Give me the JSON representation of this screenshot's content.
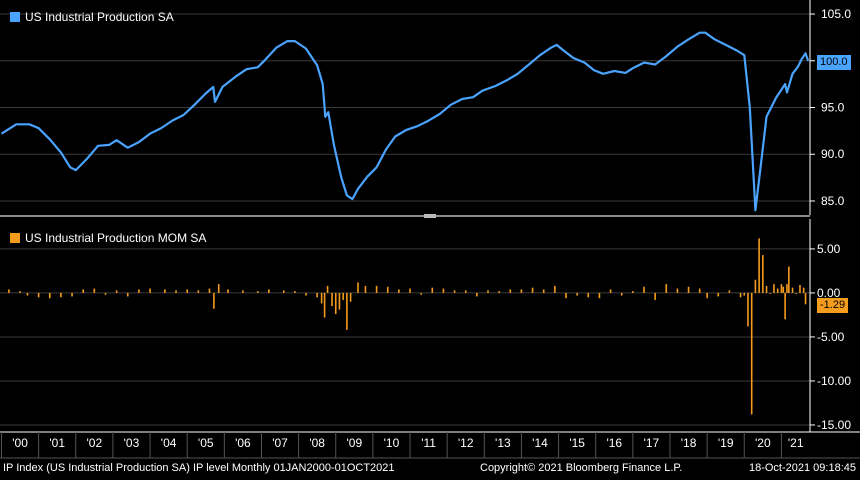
{
  "chart_data": [
    {
      "type": "line",
      "legend": "US Industrial Production SA",
      "color": "#4aa3ff",
      "last_value_label": "100.0",
      "ylim": [
        83.5,
        106.5
      ],
      "yticks": [
        85.0,
        90.0,
        95.0,
        100.0,
        105.0
      ],
      "ytick_labels": [
        "85.0",
        "90.0",
        "95.0",
        "100.0",
        "105.0"
      ],
      "x_unit": "date (fractional year)",
      "xlim": [
        1999.96,
        2021.77
      ],
      "points": [
        [
          2000.0,
          92.2
        ],
        [
          2000.4,
          93.2
        ],
        [
          2000.75,
          93.2
        ],
        [
          2001.0,
          92.8
        ],
        [
          2001.3,
          91.6
        ],
        [
          2001.6,
          90.2
        ],
        [
          2001.85,
          88.6
        ],
        [
          2002.0,
          88.3
        ],
        [
          2002.3,
          89.5
        ],
        [
          2002.6,
          90.9
        ],
        [
          2002.9,
          91.0
        ],
        [
          2003.1,
          91.5
        ],
        [
          2003.4,
          90.7
        ],
        [
          2003.7,
          91.3
        ],
        [
          2004.0,
          92.2
        ],
        [
          2004.3,
          92.8
        ],
        [
          2004.6,
          93.6
        ],
        [
          2004.9,
          94.2
        ],
        [
          2005.2,
          95.3
        ],
        [
          2005.5,
          96.5
        ],
        [
          2005.7,
          97.2
        ],
        [
          2005.75,
          95.6
        ],
        [
          2005.95,
          97.2
        ],
        [
          2006.3,
          98.3
        ],
        [
          2006.6,
          99.1
        ],
        [
          2006.9,
          99.3
        ],
        [
          2007.1,
          100.1
        ],
        [
          2007.4,
          101.4
        ],
        [
          2007.7,
          102.1
        ],
        [
          2007.9,
          102.1
        ],
        [
          2008.2,
          101.3
        ],
        [
          2008.5,
          99.5
        ],
        [
          2008.65,
          97.5
        ],
        [
          2008.72,
          94.0
        ],
        [
          2008.8,
          94.5
        ],
        [
          2008.95,
          91.0
        ],
        [
          2009.15,
          87.5
        ],
        [
          2009.3,
          85.6
        ],
        [
          2009.45,
          85.2
        ],
        [
          2009.6,
          86.3
        ],
        [
          2009.85,
          87.6
        ],
        [
          2010.1,
          88.6
        ],
        [
          2010.35,
          90.5
        ],
        [
          2010.6,
          91.9
        ],
        [
          2010.9,
          92.6
        ],
        [
          2011.2,
          93.0
        ],
        [
          2011.5,
          93.6
        ],
        [
          2011.8,
          94.3
        ],
        [
          2012.1,
          95.3
        ],
        [
          2012.4,
          95.9
        ],
        [
          2012.7,
          96.1
        ],
        [
          2012.95,
          96.8
        ],
        [
          2013.3,
          97.3
        ],
        [
          2013.6,
          97.9
        ],
        [
          2013.9,
          98.6
        ],
        [
          2014.2,
          99.6
        ],
        [
          2014.5,
          100.6
        ],
        [
          2014.8,
          101.4
        ],
        [
          2014.95,
          101.7
        ],
        [
          2015.1,
          101.2
        ],
        [
          2015.4,
          100.3
        ],
        [
          2015.7,
          99.8
        ],
        [
          2015.95,
          99.0
        ],
        [
          2016.2,
          98.6
        ],
        [
          2016.5,
          98.9
        ],
        [
          2016.8,
          98.7
        ],
        [
          2017.0,
          99.2
        ],
        [
          2017.3,
          99.8
        ],
        [
          2017.6,
          99.6
        ],
        [
          2017.9,
          100.5
        ],
        [
          2018.2,
          101.5
        ],
        [
          2018.5,
          102.3
        ],
        [
          2018.8,
          103.0
        ],
        [
          2018.95,
          103.0
        ],
        [
          2019.2,
          102.3
        ],
        [
          2019.5,
          101.7
        ],
        [
          2019.8,
          101.1
        ],
        [
          2020.0,
          100.6
        ],
        [
          2020.15,
          95.0
        ],
        [
          2020.3,
          84.0
        ],
        [
          2020.45,
          89.0
        ],
        [
          2020.6,
          94.0
        ],
        [
          2020.85,
          96.0
        ],
        [
          2021.1,
          97.5
        ],
        [
          2021.15,
          96.6
        ],
        [
          2021.3,
          98.6
        ],
        [
          2021.45,
          99.4
        ],
        [
          2021.55,
          100.2
        ],
        [
          2021.65,
          100.8
        ],
        [
          2021.72,
          100.0
        ]
      ]
    },
    {
      "type": "bar",
      "legend": "US Industrial Production MOM SA",
      "color": "#f39c1d",
      "last_value_label": "-1.29",
      "ylim": [
        -15.8,
        8.4
      ],
      "yticks": [
        5.0,
        0.0,
        -5.0,
        -10.0,
        -15.0
      ],
      "ytick_labels": [
        "5.00",
        "0.00",
        "-5.00",
        "-10.00",
        "-15.00"
      ],
      "x_unit": "date (fractional year)",
      "xlim": [
        1999.96,
        2021.77
      ],
      "bars": [
        [
          2000.2,
          0.4
        ],
        [
          2000.5,
          0.2
        ],
        [
          2000.7,
          -0.3
        ],
        [
          2001.0,
          -0.5
        ],
        [
          2001.3,
          -0.6
        ],
        [
          2001.6,
          -0.5
        ],
        [
          2001.9,
          -0.4
        ],
        [
          2002.2,
          0.4
        ],
        [
          2002.5,
          0.5
        ],
        [
          2002.8,
          -0.2
        ],
        [
          2003.1,
          0.3
        ],
        [
          2003.4,
          -0.4
        ],
        [
          2003.7,
          0.4
        ],
        [
          2004.0,
          0.5
        ],
        [
          2004.4,
          0.4
        ],
        [
          2004.7,
          0.3
        ],
        [
          2005.0,
          0.4
        ],
        [
          2005.3,
          0.3
        ],
        [
          2005.6,
          0.5
        ],
        [
          2005.72,
          -1.8
        ],
        [
          2005.85,
          1.0
        ],
        [
          2006.1,
          0.4
        ],
        [
          2006.5,
          0.3
        ],
        [
          2006.9,
          0.2
        ],
        [
          2007.2,
          0.4
        ],
        [
          2007.6,
          0.3
        ],
        [
          2007.9,
          0.2
        ],
        [
          2008.2,
          -0.3
        ],
        [
          2008.5,
          -0.5
        ],
        [
          2008.62,
          -1.2
        ],
        [
          2008.7,
          -2.8
        ],
        [
          2008.78,
          0.8
        ],
        [
          2008.9,
          -1.5
        ],
        [
          2009.0,
          -2.4
        ],
        [
          2009.1,
          -1.9
        ],
        [
          2009.2,
          -0.8
        ],
        [
          2009.3,
          -4.2
        ],
        [
          2009.4,
          -1.0
        ],
        [
          2009.6,
          1.2
        ],
        [
          2009.8,
          0.8
        ],
        [
          2010.1,
          0.8
        ],
        [
          2010.4,
          0.7
        ],
        [
          2010.7,
          0.4
        ],
        [
          2011.0,
          0.5
        ],
        [
          2011.3,
          -0.2
        ],
        [
          2011.6,
          0.6
        ],
        [
          2011.9,
          0.5
        ],
        [
          2012.2,
          0.3
        ],
        [
          2012.5,
          0.3
        ],
        [
          2012.8,
          -0.4
        ],
        [
          2013.1,
          0.3
        ],
        [
          2013.4,
          0.2
        ],
        [
          2013.7,
          0.4
        ],
        [
          2014.0,
          0.4
        ],
        [
          2014.3,
          0.6
        ],
        [
          2014.6,
          0.4
        ],
        [
          2014.9,
          0.8
        ],
        [
          2015.2,
          -0.6
        ],
        [
          2015.5,
          -0.3
        ],
        [
          2015.8,
          -0.5
        ],
        [
          2016.1,
          -0.6
        ],
        [
          2016.4,
          0.4
        ],
        [
          2016.7,
          -0.3
        ],
        [
          2017.0,
          0.2
        ],
        [
          2017.3,
          0.7
        ],
        [
          2017.6,
          -0.8
        ],
        [
          2017.9,
          1.0
        ],
        [
          2018.2,
          0.5
        ],
        [
          2018.5,
          0.7
        ],
        [
          2018.8,
          0.5
        ],
        [
          2019.0,
          -0.6
        ],
        [
          2019.3,
          -0.4
        ],
        [
          2019.6,
          0.3
        ],
        [
          2019.9,
          -0.5
        ],
        [
          2020.0,
          -0.3
        ],
        [
          2020.1,
          -3.8
        ],
        [
          2020.2,
          -13.8
        ],
        [
          2020.3,
          1.5
        ],
        [
          2020.4,
          6.2
        ],
        [
          2020.5,
          4.3
        ],
        [
          2020.6,
          0.8
        ],
        [
          2020.7,
          -0.1
        ],
        [
          2020.8,
          1.0
        ],
        [
          2020.9,
          0.5
        ],
        [
          2021.0,
          1.0
        ],
        [
          2021.05,
          0.7
        ],
        [
          2021.1,
          -3.0
        ],
        [
          2021.15,
          1.0
        ],
        [
          2021.2,
          3.0
        ],
        [
          2021.3,
          0.6
        ],
        [
          2021.4,
          -0.1
        ],
        [
          2021.5,
          0.9
        ],
        [
          2021.6,
          0.6
        ],
        [
          2021.65,
          -1.29
        ]
      ]
    }
  ],
  "x_axis": {
    "tick_labels": [
      "'00",
      "'01",
      "'02",
      "'03",
      "'04",
      "'05",
      "'06",
      "'07",
      "'08",
      "'09",
      "'10",
      "'11",
      "'12",
      "'13",
      "'14",
      "'15",
      "'16",
      "'17",
      "'18",
      "'19",
      "'20",
      "'21"
    ],
    "tick_years": [
      2000,
      2001,
      2002,
      2003,
      2004,
      2005,
      2006,
      2007,
      2008,
      2009,
      2010,
      2011,
      2012,
      2013,
      2014,
      2015,
      2016,
      2017,
      2018,
      2019,
      2020,
      2021
    ]
  },
  "footer": {
    "left": "IP Index (US Industrial Production SA) IP level  Monthly 01JAN2000-01OCT2021",
    "mid": "Copyright© 2021 Bloomberg Finance L.P.",
    "right": "18-Oct-2021 09:18:45"
  },
  "colors": {
    "background": "#000000",
    "grid": "#3a3a3a",
    "divider": "#8a8a8a"
  }
}
